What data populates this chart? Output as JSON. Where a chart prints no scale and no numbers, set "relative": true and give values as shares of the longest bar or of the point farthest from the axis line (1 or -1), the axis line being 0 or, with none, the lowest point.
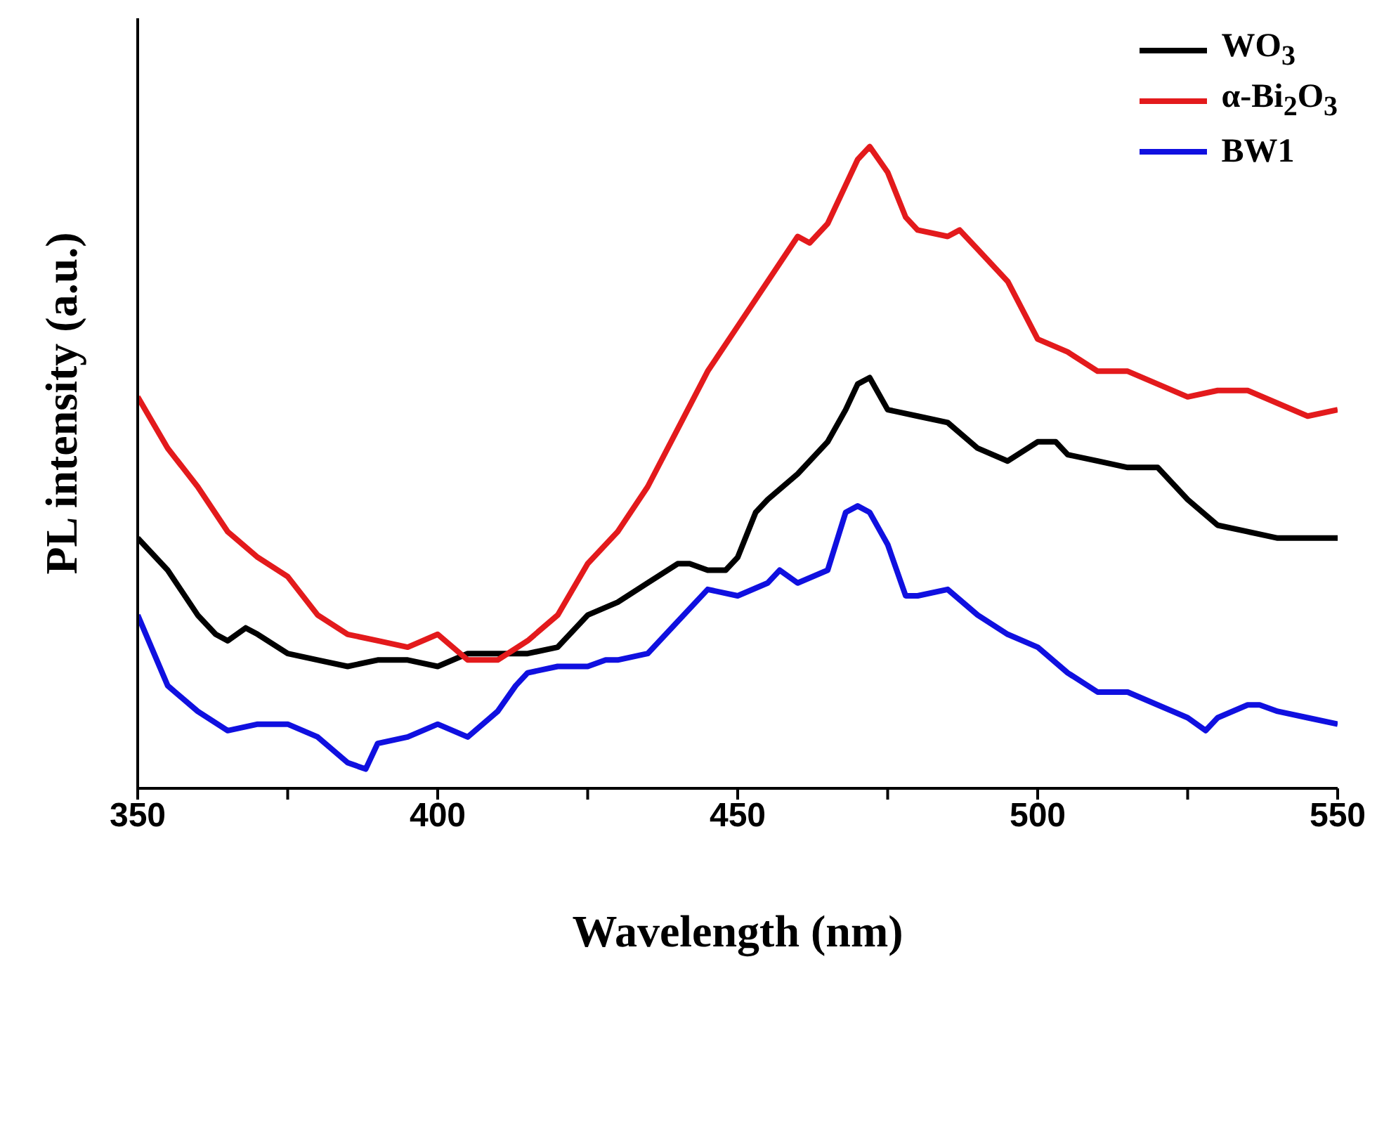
{
  "chart_data": {
    "type": "line",
    "relative": true,
    "xlabel": "Wavelength (nm)",
    "ylabel": "PL intensity (a.u.)",
    "xlim": [
      350,
      550
    ],
    "xticks": [
      350,
      {
        "value": 375,
        "label": null
      },
      400,
      {
        "value": 425,
        "label": null
      },
      450,
      {
        "value": 475,
        "label": null
      },
      500,
      {
        "value": 525,
        "label": null
      },
      550
    ],
    "legend": "top right",
    "grid": false,
    "marker": "none",
    "line_style": "solid",
    "series": [
      {
        "name": "WO$_{3}$",
        "color": "#000000",
        "x": [
          350,
          355,
          360,
          363,
          365,
          368,
          370,
          375,
          380,
          385,
          390,
          395,
          400,
          405,
          410,
          415,
          420,
          425,
          430,
          435,
          440,
          442,
          445,
          448,
          450,
          453,
          455,
          460,
          465,
          468,
          470,
          472,
          475,
          480,
          485,
          490,
          495,
          500,
          503,
          505,
          510,
          515,
          520,
          525,
          530,
          535,
          540,
          545,
          550
        ],
        "values": [
          0.39,
          0.34,
          0.27,
          0.24,
          0.23,
          0.25,
          0.24,
          0.21,
          0.2,
          0.19,
          0.2,
          0.2,
          0.19,
          0.21,
          0.21,
          0.21,
          0.22,
          0.27,
          0.29,
          0.32,
          0.35,
          0.35,
          0.34,
          0.34,
          0.36,
          0.43,
          0.45,
          0.49,
          0.54,
          0.59,
          0.63,
          0.64,
          0.59,
          0.58,
          0.57,
          0.53,
          0.51,
          0.54,
          0.54,
          0.52,
          0.51,
          0.5,
          0.5,
          0.45,
          0.41,
          0.4,
          0.39,
          0.39,
          0.39
        ]
      },
      {
        "name": "α-Bi$_{2}$O$_{3}$",
        "color": "#e31a1c",
        "x": [
          350,
          355,
          360,
          365,
          370,
          375,
          380,
          385,
          390,
          395,
          400,
          405,
          410,
          415,
          420,
          425,
          430,
          435,
          440,
          445,
          450,
          455,
          460,
          462,
          465,
          470,
          472,
          475,
          478,
          480,
          485,
          487,
          490,
          495,
          500,
          505,
          510,
          515,
          520,
          525,
          530,
          535,
          540,
          545,
          550
        ],
        "values": [
          0.61,
          0.53,
          0.47,
          0.4,
          0.36,
          0.33,
          0.27,
          0.24,
          0.23,
          0.22,
          0.24,
          0.2,
          0.2,
          0.23,
          0.27,
          0.35,
          0.4,
          0.47,
          0.56,
          0.65,
          0.72,
          0.79,
          0.86,
          0.85,
          0.88,
          0.98,
          1.0,
          0.96,
          0.89,
          0.87,
          0.86,
          0.87,
          0.84,
          0.79,
          0.7,
          0.68,
          0.65,
          0.65,
          0.63,
          0.61,
          0.62,
          0.62,
          0.6,
          0.58,
          0.59
        ]
      },
      {
        "name": "BW1",
        "color": "#1010e0",
        "x": [
          350,
          355,
          360,
          365,
          370,
          375,
          380,
          385,
          388,
          390,
          395,
          400,
          405,
          410,
          413,
          415,
          420,
          425,
          428,
          430,
          435,
          440,
          445,
          450,
          455,
          457,
          460,
          465,
          468,
          470,
          472,
          475,
          478,
          480,
          485,
          490,
          495,
          500,
          505,
          510,
          515,
          520,
          525,
          528,
          530,
          535,
          537,
          540,
          545,
          550
        ],
        "values": [
          0.27,
          0.16,
          0.12,
          0.09,
          0.1,
          0.1,
          0.08,
          0.04,
          0.03,
          0.07,
          0.08,
          0.1,
          0.08,
          0.12,
          0.16,
          0.18,
          0.19,
          0.19,
          0.2,
          0.2,
          0.21,
          0.26,
          0.31,
          0.3,
          0.32,
          0.34,
          0.32,
          0.34,
          0.43,
          0.44,
          0.43,
          0.38,
          0.3,
          0.3,
          0.31,
          0.27,
          0.24,
          0.22,
          0.18,
          0.15,
          0.15,
          0.13,
          0.11,
          0.09,
          0.11,
          0.13,
          0.13,
          0.12,
          0.11,
          0.1
        ]
      }
    ]
  }
}
